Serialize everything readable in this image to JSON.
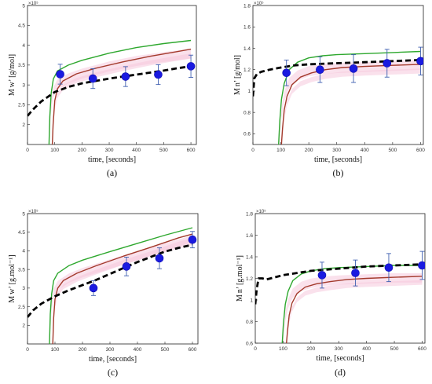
{
  "colors": {
    "dashed": "#000000",
    "green": "#2ea82e",
    "red": "#a33a2c",
    "band": "#f6c9dc",
    "markers": "#1a1ae0",
    "errorbars": "#3f5fb0"
  },
  "chart_data": [
    {
      "type": "line",
      "caption": "(a)",
      "xlabel": "time, [seconds]",
      "ylabel": "M w’ [g/mol]",
      "exponent": "×10⁵",
      "xlim": [
        0,
        620
      ],
      "ylim": [
        1.5,
        5
      ],
      "xticks": [
        "0",
        "100",
        "200",
        "300",
        "400",
        "500",
        "600"
      ],
      "yticks": [
        "2",
        "2.5",
        "3",
        "3.5",
        "4",
        "4.5",
        "5"
      ],
      "dashed": {
        "x": [
          0,
          20,
          50,
          100,
          150,
          200,
          250,
          300,
          350,
          400,
          450,
          500,
          550,
          600
        ],
        "y": [
          2.22,
          2.38,
          2.58,
          2.82,
          2.95,
          3.04,
          3.1,
          3.16,
          3.21,
          3.26,
          3.31,
          3.36,
          3.42,
          3.47
        ]
      },
      "green": {
        "x": [
          79,
          82,
          87,
          95,
          110,
          150,
          200,
          300,
          400,
          500,
          600
        ],
        "y": [
          1.5,
          2.2,
          2.8,
          3.15,
          3.35,
          3.5,
          3.62,
          3.8,
          3.94,
          4.04,
          4.12
        ]
      },
      "red": {
        "x": [
          91,
          94,
          100,
          110,
          130,
          180,
          250,
          350,
          450,
          550,
          600
        ],
        "y": [
          1.5,
          2.0,
          2.6,
          2.9,
          3.1,
          3.28,
          3.42,
          3.58,
          3.72,
          3.84,
          3.9
        ]
      },
      "points": [
        {
          "x": 120,
          "y": 3.27,
          "err": 0.25
        },
        {
          "x": 240,
          "y": 3.16,
          "err": 0.25
        },
        {
          "x": 360,
          "y": 3.21,
          "err": 0.25
        },
        {
          "x": 480,
          "y": 3.26,
          "err": 0.25
        },
        {
          "x": 600,
          "y": 3.47,
          "err": 0.28
        }
      ]
    },
    {
      "type": "line",
      "caption": "(b)",
      "xlabel": "time, [seconds]",
      "ylabel": "M n’ [g/mol]",
      "exponent": "×10⁵",
      "xlim": [
        0,
        610
      ],
      "ylim": [
        0.5,
        1.8
      ],
      "xticks": [
        "0",
        "100",
        "200",
        "300",
        "400",
        "500",
        "600"
      ],
      "yticks": [
        "0.6",
        "0.8",
        "1",
        "1.2",
        "1.4",
        "1.6",
        "1.8"
      ],
      "dashed": {
        "x": [
          0,
          5,
          15,
          30,
          60,
          100,
          150,
          200,
          300,
          400,
          500,
          600
        ],
        "y": [
          0.95,
          1.12,
          1.16,
          1.18,
          1.2,
          1.22,
          1.24,
          1.25,
          1.26,
          1.27,
          1.28,
          1.29
        ]
      },
      "green": {
        "x": [
          92,
          96,
          102,
          112,
          130,
          160,
          200,
          250,
          300,
          400,
          500,
          600
        ],
        "y": [
          0.5,
          0.72,
          0.92,
          1.07,
          1.2,
          1.27,
          1.31,
          1.33,
          1.34,
          1.35,
          1.36,
          1.37
        ]
      },
      "red": {
        "x": [
          102,
          106,
          112,
          122,
          140,
          170,
          210,
          260,
          320,
          400,
          500,
          600
        ],
        "y": [
          0.5,
          0.65,
          0.82,
          0.95,
          1.06,
          1.13,
          1.17,
          1.2,
          1.22,
          1.23,
          1.24,
          1.25
        ]
      },
      "points": [
        {
          "x": 120,
          "y": 1.17,
          "err": 0.12
        },
        {
          "x": 240,
          "y": 1.2,
          "err": 0.12
        },
        {
          "x": 360,
          "y": 1.21,
          "err": 0.13
        },
        {
          "x": 480,
          "y": 1.26,
          "err": 0.13
        },
        {
          "x": 600,
          "y": 1.28,
          "err": 0.13
        }
      ]
    },
    {
      "type": "line",
      "caption": "(c)",
      "xlabel": "time, [seconds]",
      "ylabel": "M w’ [g.mol⁻¹]",
      "exponent": "×10⁵",
      "xlim": [
        0,
        620
      ],
      "ylim": [
        1.5,
        5
      ],
      "xticks": [
        "0",
        "100",
        "200",
        "300",
        "400",
        "500",
        "600"
      ],
      "yticks": [
        "2",
        "2.5",
        "3",
        "3.5",
        "4",
        "4.5",
        "5"
      ],
      "dashed": {
        "x": [
          0,
          20,
          50,
          100,
          150,
          200,
          250,
          300,
          350,
          400,
          450,
          500,
          550,
          600
        ],
        "y": [
          2.22,
          2.4,
          2.58,
          2.78,
          2.94,
          3.08,
          3.22,
          3.38,
          3.54,
          3.7,
          3.84,
          3.98,
          4.08,
          4.16
        ]
      },
      "green": {
        "x": [
          80,
          83,
          88,
          95,
          110,
          150,
          200,
          300,
          400,
          500,
          600
        ],
        "y": [
          1.5,
          2.3,
          2.85,
          3.2,
          3.4,
          3.6,
          3.75,
          3.98,
          4.2,
          4.42,
          4.62
        ]
      },
      "red": {
        "x": [
          92,
          95,
          100,
          110,
          130,
          180,
          250,
          350,
          450,
          550,
          600
        ],
        "y": [
          1.5,
          2.2,
          2.7,
          3.0,
          3.2,
          3.4,
          3.6,
          3.86,
          4.1,
          4.35,
          4.45
        ]
      },
      "points": [
        {
          "x": 240,
          "y": 3.0,
          "err": 0.2
        },
        {
          "x": 360,
          "y": 3.58,
          "err": 0.25
        },
        {
          "x": 480,
          "y": 3.8,
          "err": 0.28
        },
        {
          "x": 600,
          "y": 4.3,
          "err": 0.22
        }
      ]
    },
    {
      "type": "line",
      "caption": "(d)",
      "xlabel": "time, [seconds]",
      "ylabel": "M n’ [g.mol⁻¹]",
      "exponent": "×10⁵",
      "xlim": [
        0,
        610
      ],
      "ylim": [
        0.6,
        1.8
      ],
      "xticks": [
        "0",
        "100",
        "200",
        "300",
        "400",
        "500",
        "600"
      ],
      "yticks": [
        "0.6",
        "0.8",
        "1",
        "1.2",
        "1.4",
        "1.6",
        "1.8"
      ],
      "dashed": {
        "x": [
          0,
          5,
          12,
          25,
          40,
          70,
          100,
          150,
          200,
          300,
          400,
          500,
          600
        ],
        "y": [
          0.96,
          1.1,
          1.2,
          1.2,
          1.19,
          1.21,
          1.23,
          1.25,
          1.27,
          1.29,
          1.31,
          1.32,
          1.33
        ]
      },
      "green": {
        "x": [
          97,
          101,
          108,
          118,
          135,
          165,
          200,
          250,
          300,
          400,
          500,
          600
        ],
        "y": [
          0.6,
          0.78,
          0.96,
          1.08,
          1.18,
          1.24,
          1.27,
          1.29,
          1.3,
          1.31,
          1.32,
          1.32
        ]
      },
      "red": {
        "x": [
          112,
          116,
          122,
          132,
          150,
          180,
          220,
          270,
          330,
          400,
          500,
          600
        ],
        "y": [
          0.6,
          0.72,
          0.86,
          0.97,
          1.06,
          1.12,
          1.15,
          1.17,
          1.19,
          1.2,
          1.21,
          1.22
        ]
      },
      "points": [
        {
          "x": 240,
          "y": 1.23,
          "err": 0.12
        },
        {
          "x": 360,
          "y": 1.25,
          "err": 0.12
        },
        {
          "x": 480,
          "y": 1.3,
          "err": 0.13
        },
        {
          "x": 600,
          "y": 1.32,
          "err": 0.13
        }
      ]
    }
  ]
}
